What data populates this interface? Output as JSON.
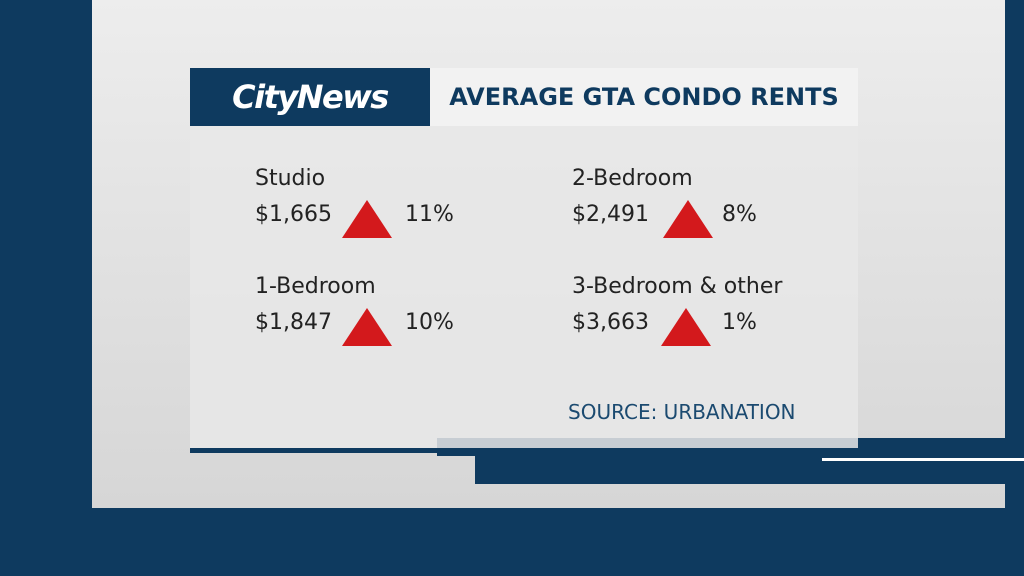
{
  "header": {
    "brand": "CityNews",
    "title": "AVERAGE GTA CONDO RENTS"
  },
  "items": [
    {
      "label": "Studio",
      "price": "$1,665",
      "change": "11%"
    },
    {
      "label": "2-Bedroom",
      "price": "$2,491",
      "change": "8%"
    },
    {
      "label": "1-Bedroom",
      "price": "$1,847",
      "change": "10%"
    },
    {
      "label": "3-Bedroom & other",
      "price": "$3,663",
      "change": "1%"
    }
  ],
  "source": "SOURCE: URBANATION"
}
